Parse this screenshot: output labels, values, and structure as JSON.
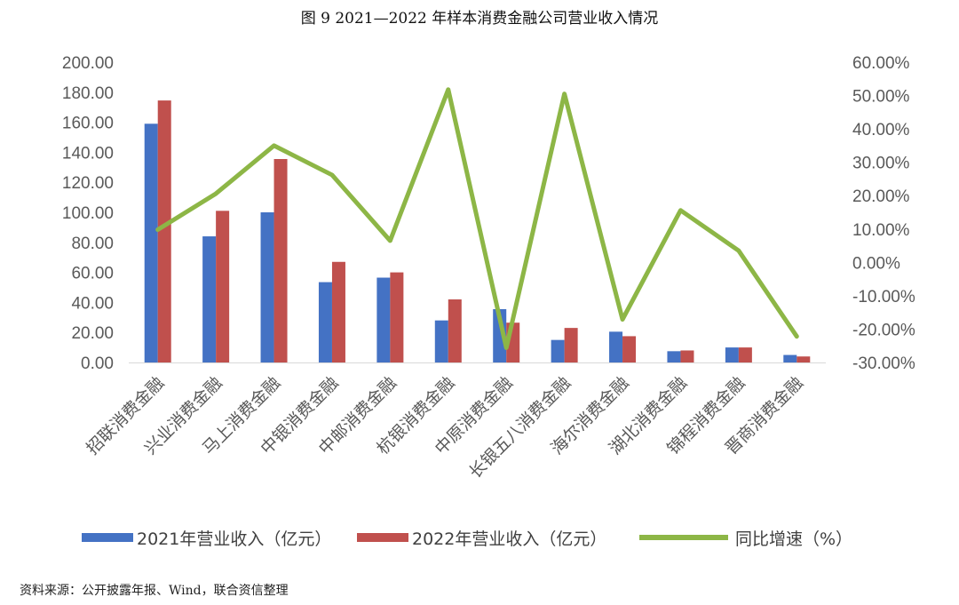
{
  "page": {
    "figure_title": "图 9   2021—2022 年样本消费金融公司营业收入情况",
    "source_note": "资料来源：公开披露年报、Wind，联合资信整理"
  },
  "chart_data": {
    "type": "bar",
    "title": "图 9   2021—2022 年样本消费金融公司营业收入情况",
    "categories": [
      "招联消费金融",
      "兴业消费金融",
      "马上消费金融",
      "中银消费金融",
      "中邮消费金融",
      "杭银消费金融",
      "中原消费金融",
      "长银五八消费金融",
      "海尔消费金融",
      "湖北消费金融",
      "锦程消费金融",
      "晋商消费金融"
    ],
    "series": [
      {
        "name": "2021年营业收入（亿元）",
        "type": "bar",
        "axis": "left",
        "color": "#4472C4",
        "values": [
          159.0,
          84.0,
          100.0,
          53.5,
          56.5,
          28.0,
          35.5,
          15.0,
          20.5,
          7.5,
          10.0,
          5.0
        ]
      },
      {
        "name": "2022年营业收入（亿元）",
        "type": "bar",
        "axis": "left",
        "color": "#C0504D",
        "values": [
          174.5,
          101.0,
          135.5,
          67.0,
          60.0,
          42.0,
          26.5,
          23.0,
          17.5,
          8.0,
          10.0,
          4.0
        ]
      },
      {
        "name": "同比增速（%）",
        "type": "line",
        "axis": "right",
        "color": "#8DB646",
        "values": [
          9.8,
          20.6,
          35.0,
          26.2,
          6.5,
          51.8,
          -25.6,
          50.5,
          -17.1,
          15.6,
          3.5,
          -22.2
        ]
      }
    ],
    "y_left": {
      "min": 0,
      "max": 200,
      "step": 20,
      "tick_labels": [
        "0.00",
        "20.00",
        "40.00",
        "60.00",
        "80.00",
        "100.00",
        "120.00",
        "140.00",
        "160.00",
        "180.00",
        "200.00"
      ]
    },
    "y_right": {
      "min": -30,
      "max": 60,
      "step": 10,
      "tick_labels": [
        "-30.00%",
        "-20.00%",
        "-10.00%",
        "0.00%",
        "10.00%",
        "20.00%",
        "30.00%",
        "40.00%",
        "50.00%",
        "60.00%"
      ]
    },
    "grid": false,
    "legend_position": "bottom"
  }
}
